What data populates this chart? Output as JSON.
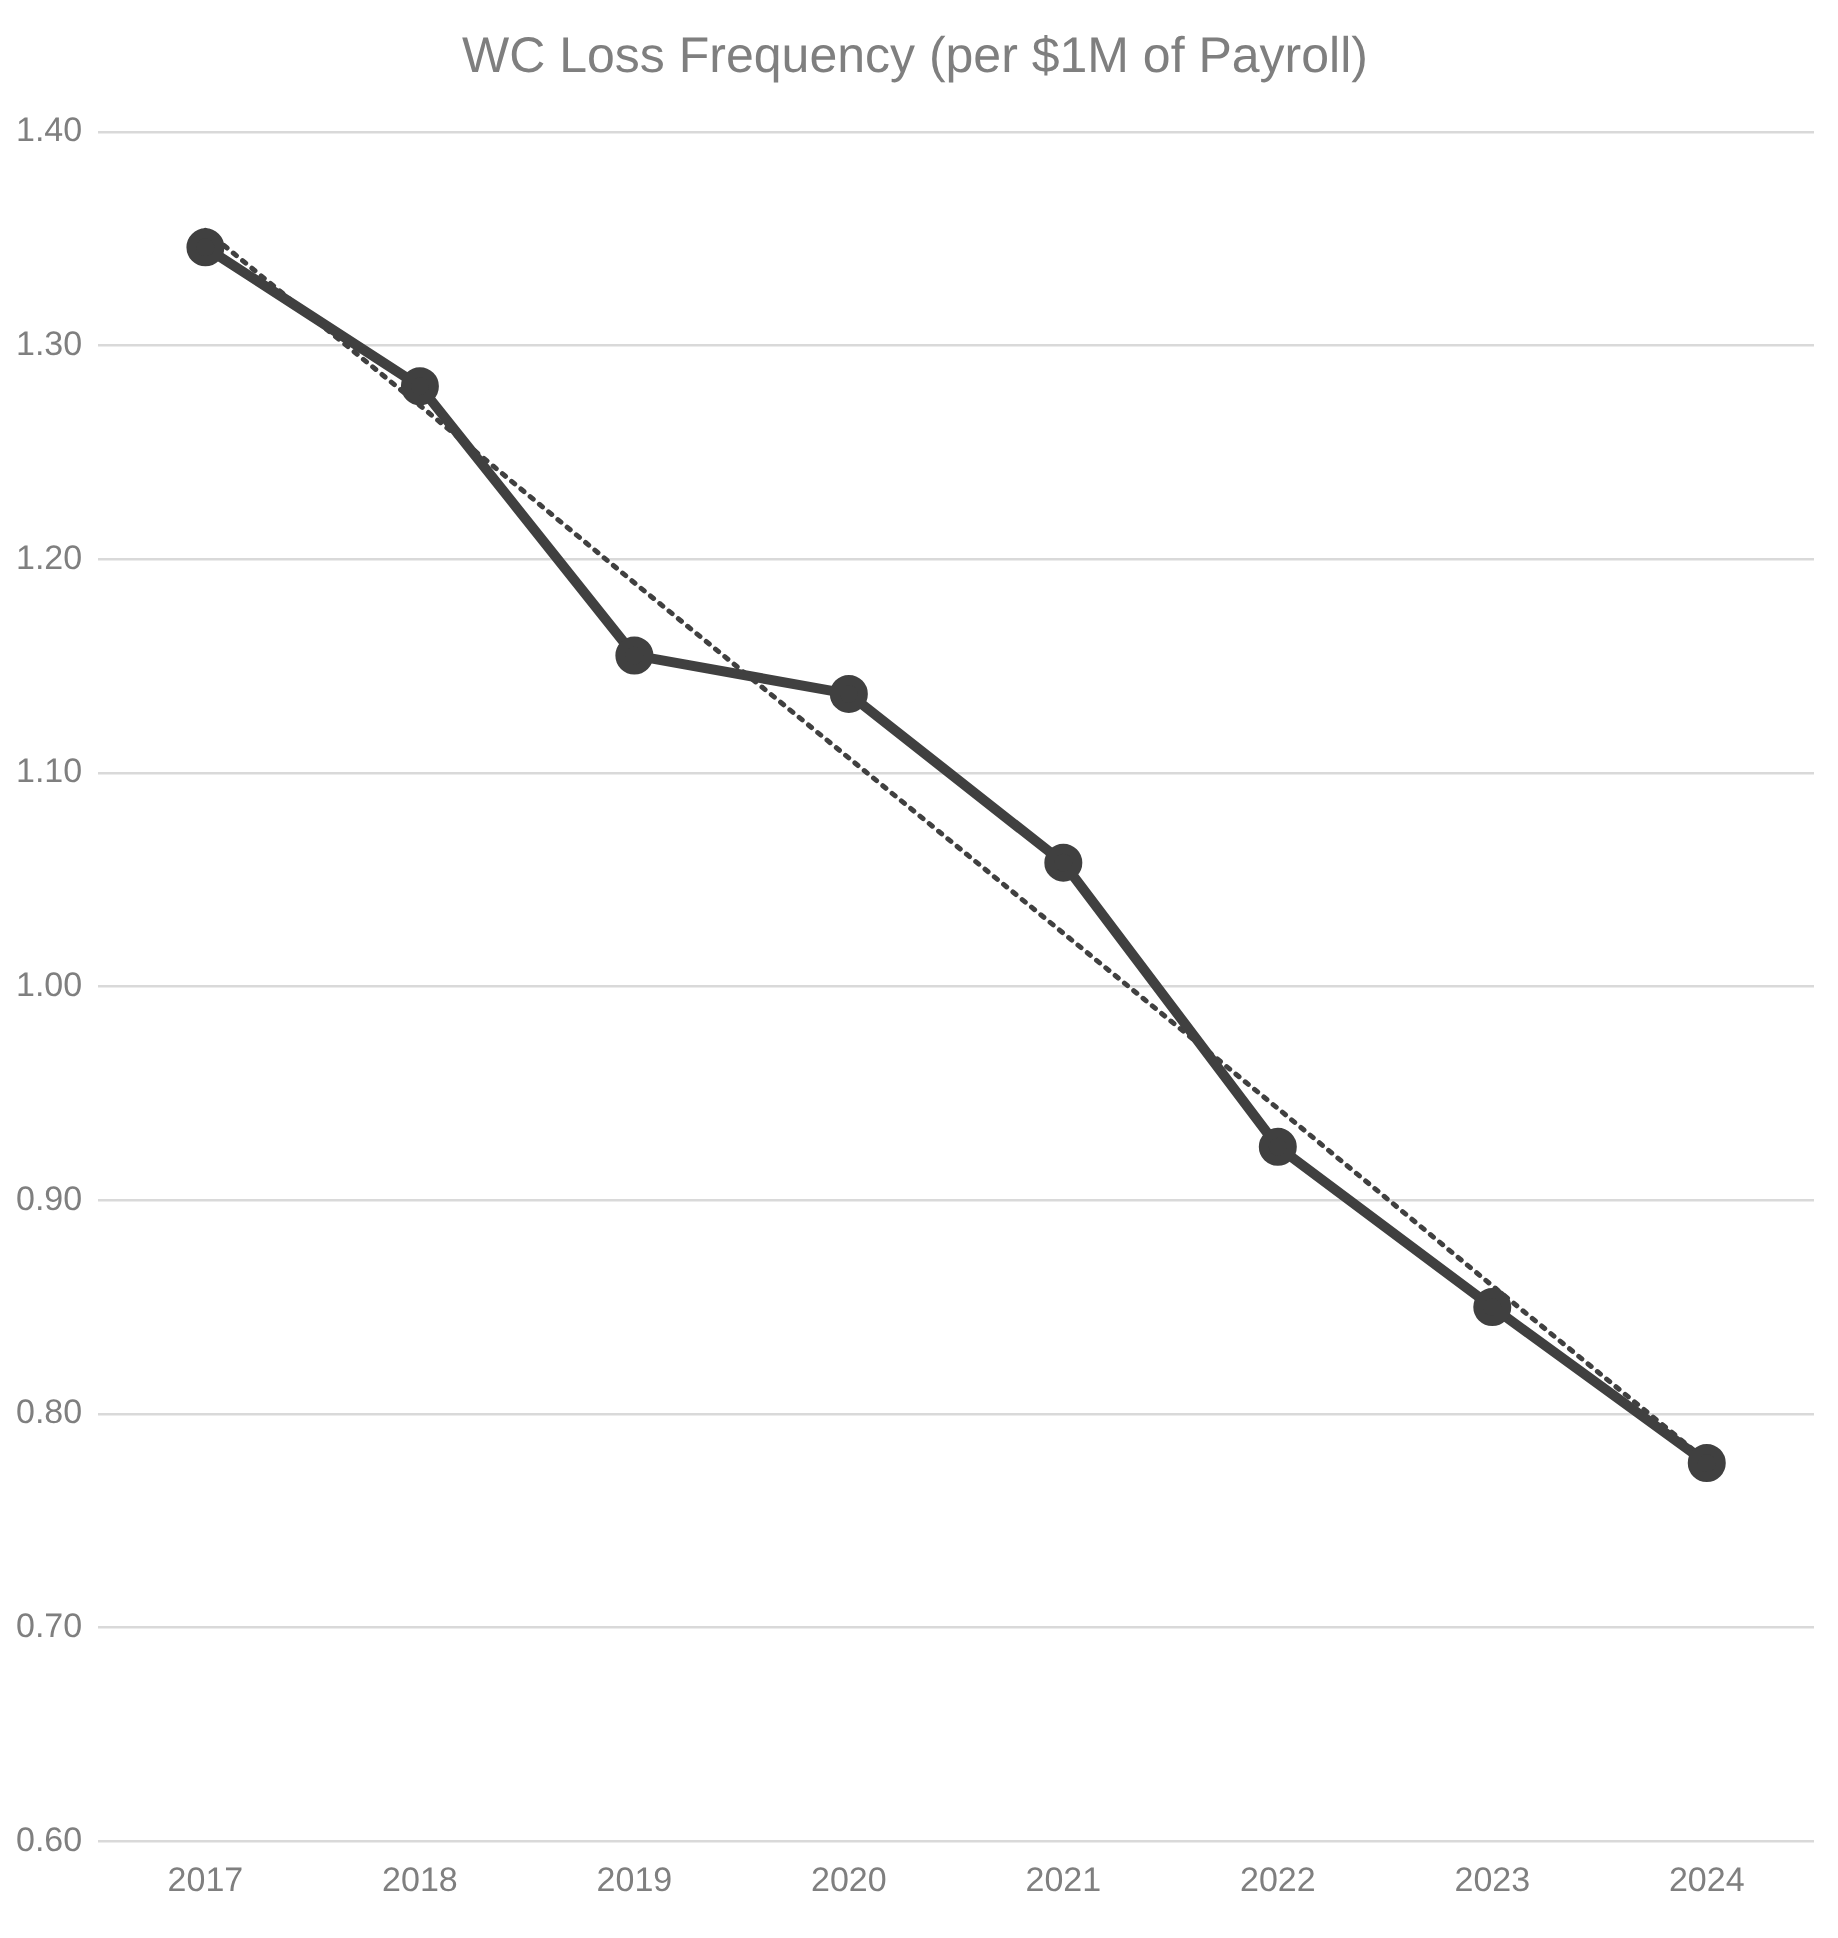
{
  "chart_data": {
    "type": "line",
    "title": "WC Loss Frequency (per $1M of Payroll)",
    "categories": [
      "2017",
      "2018",
      "2019",
      "2020",
      "2021",
      "2022",
      "2023",
      "2024"
    ],
    "series": [
      {
        "color": "#404040",
        "values": [
          1.346,
          1.281,
          1.155,
          1.137,
          1.058,
          0.925,
          0.85,
          0.777
        ],
        "marker": "circle",
        "line_style": "solid"
      },
      {
        "type": "line",
        "color": "#404040",
        "values": [
          1.354,
          1.272,
          1.189,
          1.107,
          1.025,
          0.943,
          0.86,
          0.778
        ],
        "marker": "none",
        "line_style": "dotted"
      }
    ],
    "ylim": [
      0.6,
      1.4
    ],
    "yticks": [
      {
        "value": 0.6,
        "label": "0.60"
      },
      {
        "value": 0.7,
        "label": "0.70"
      },
      {
        "value": 0.8,
        "label": "0.80"
      },
      {
        "value": 0.9,
        "label": "0.90"
      },
      {
        "value": 1.0,
        "label": "1.00"
      },
      {
        "value": 1.1,
        "label": "1.10"
      },
      {
        "value": 1.2,
        "label": "1.20"
      },
      {
        "value": 1.3,
        "label": "1.30"
      },
      {
        "value": 1.4,
        "label": "1.40"
      }
    ],
    "grid": "y",
    "legend": false
  }
}
